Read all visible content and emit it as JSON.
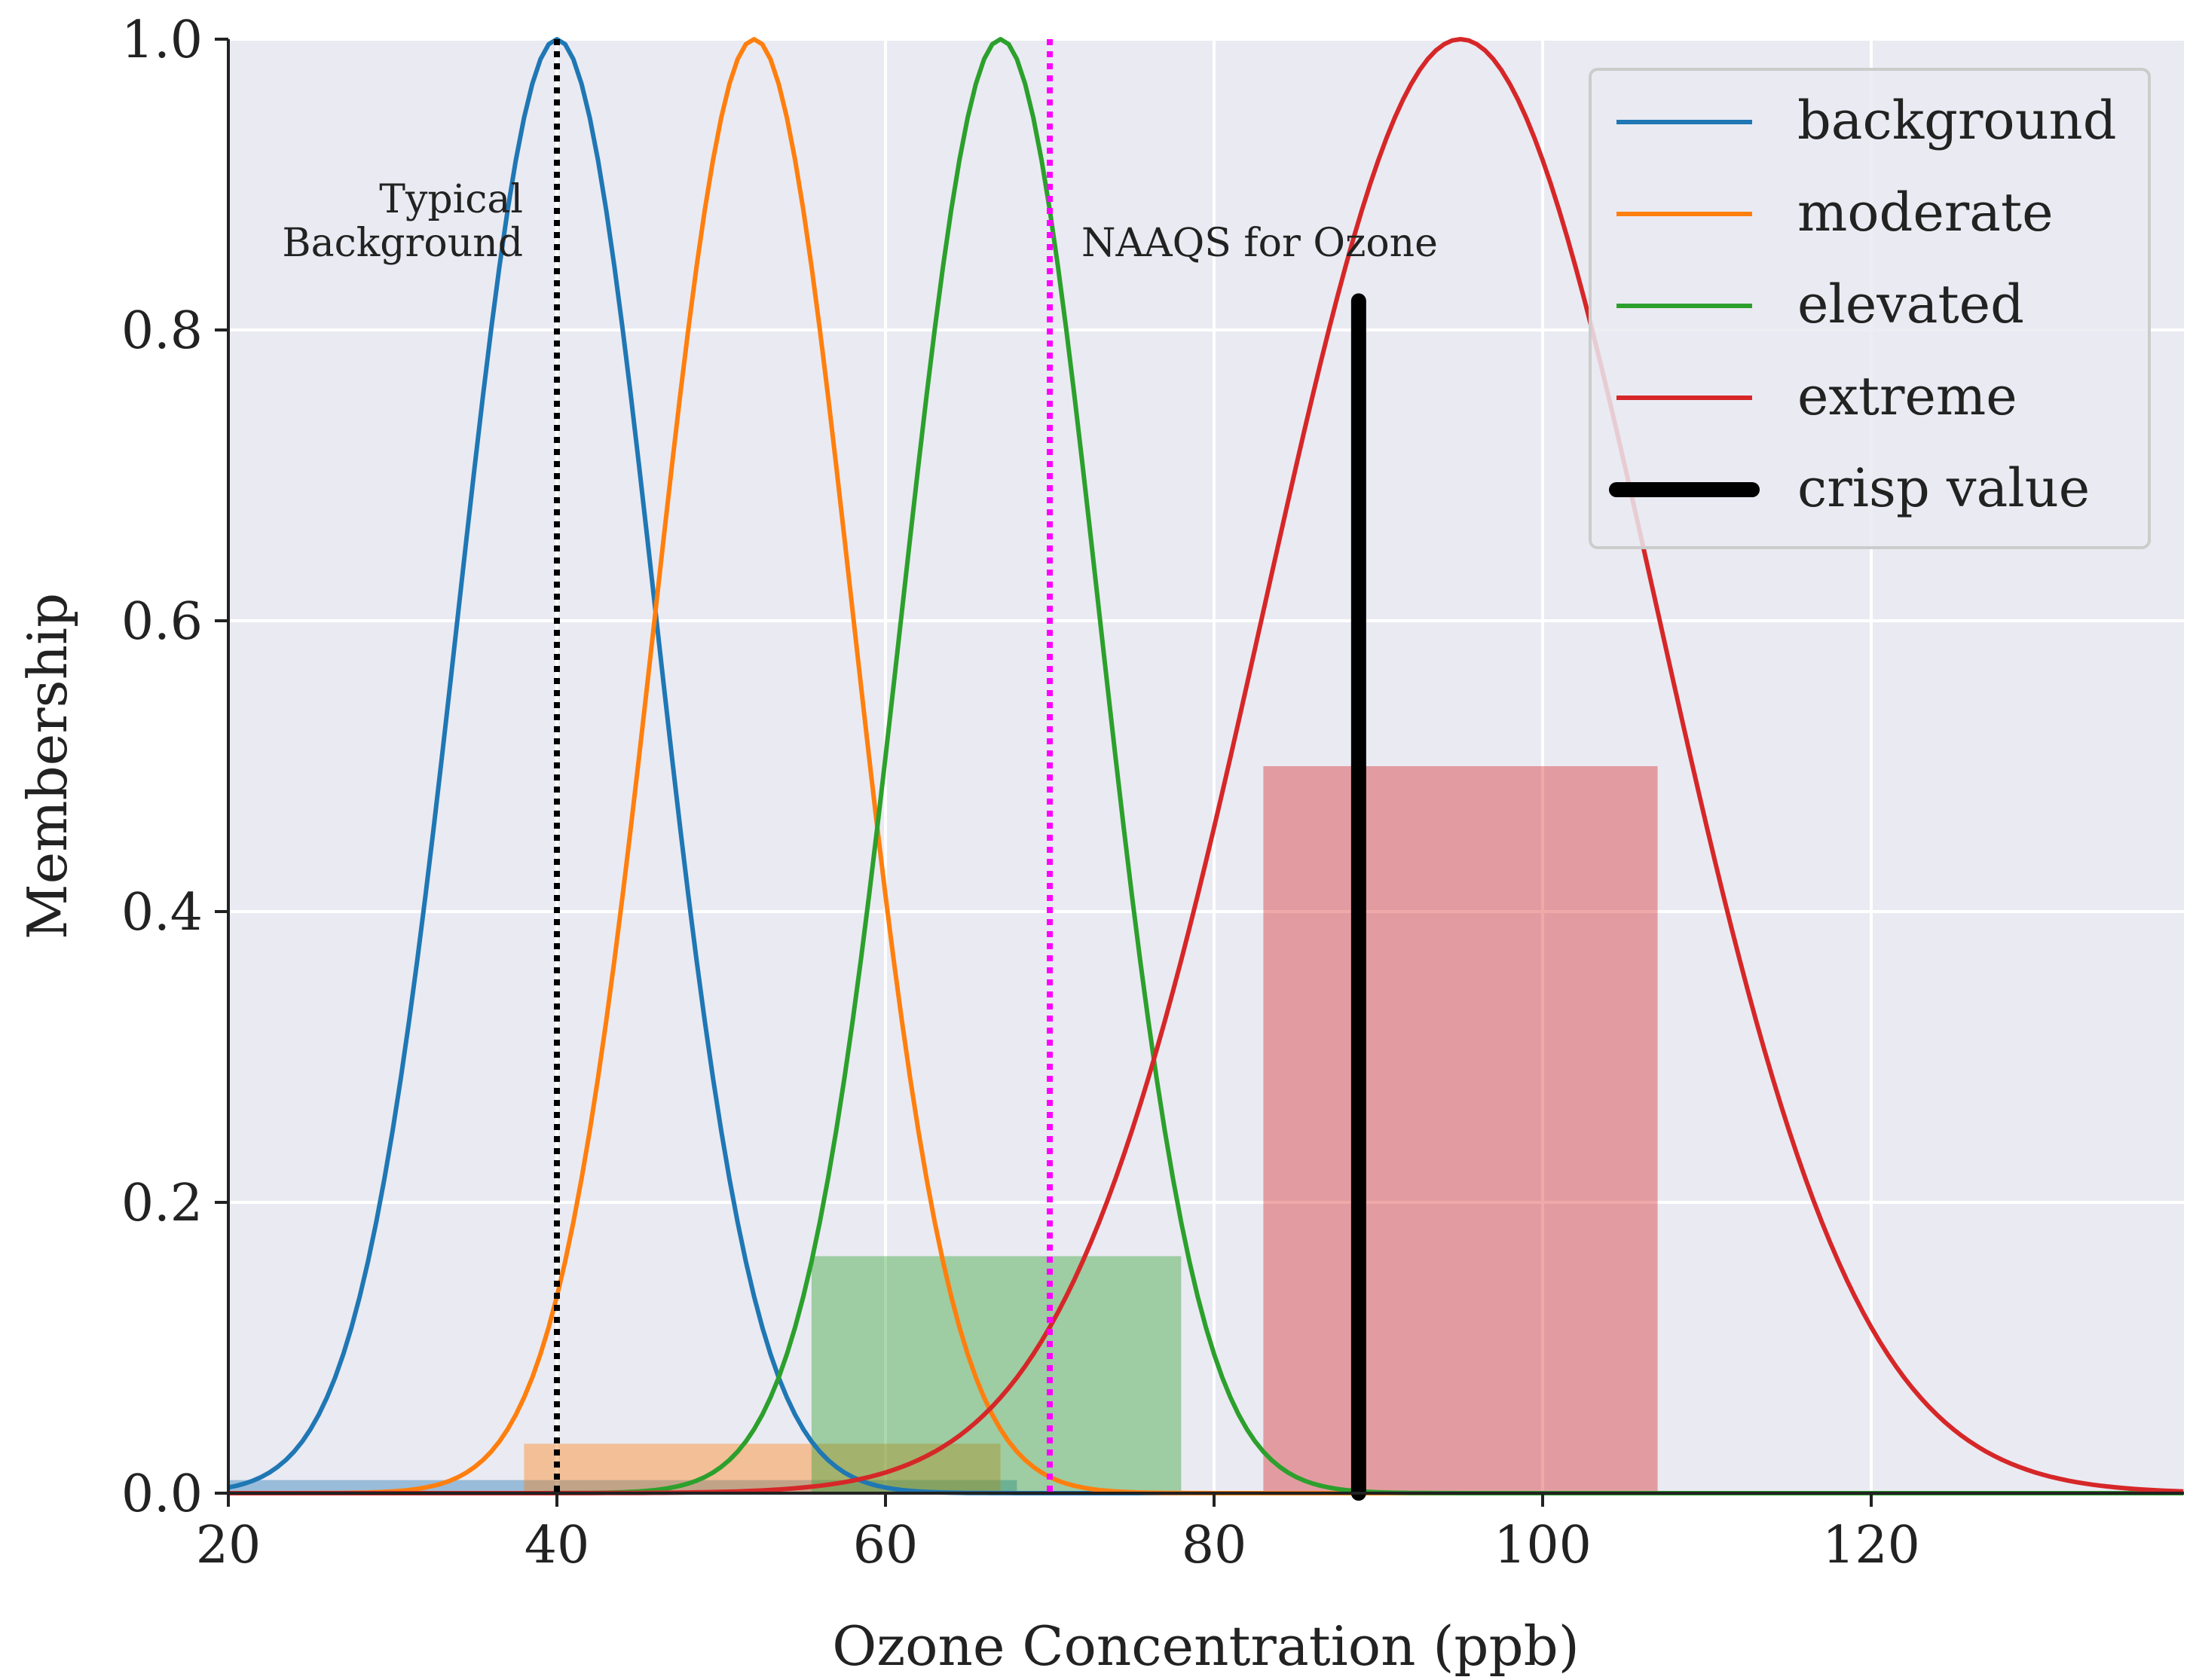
{
  "chart_data": {
    "type": "line",
    "xlabel": "Ozone Concentration (ppb)",
    "ylabel": "Membership",
    "xlim": [
      20,
      139
    ],
    "ylim": [
      0,
      1.0
    ],
    "x_ticks": [
      20,
      40,
      60,
      80,
      100,
      120
    ],
    "y_ticks": [
      0.0,
      0.2,
      0.4,
      0.6,
      0.8,
      1.0
    ],
    "x_tick_labels": [
      "20",
      "40",
      "60",
      "80",
      "100",
      "120"
    ],
    "y_tick_labels": [
      "0.0",
      "0.2",
      "0.4",
      "0.6",
      "0.8",
      "1.0"
    ],
    "grid": true,
    "legend_position": "top-right",
    "series": [
      {
        "name": "background",
        "color": "#1f77b4",
        "shape": "gaussian",
        "center": 40,
        "sigma": 6,
        "fill_level": 0.009,
        "fill_range": [
          20,
          68
        ]
      },
      {
        "name": "moderate",
        "color": "#ff7f0e",
        "shape": "gaussian",
        "center": 52,
        "sigma": 6,
        "fill_level": 0.034,
        "fill_range": [
          38,
          67
        ]
      },
      {
        "name": "elevated",
        "color": "#2ca02c",
        "shape": "gaussian",
        "center": 67,
        "sigma": 6,
        "fill_level": 0.163,
        "fill_range": [
          55.5,
          78
        ]
      },
      {
        "name": "extreme",
        "color": "#d62728",
        "shape": "gaussian",
        "center": 95,
        "sigma": 12,
        "fill_level": 0.5,
        "fill_range": [
          83,
          107
        ]
      }
    ],
    "crisp_value": {
      "name": "crisp value",
      "x": 88.8,
      "y": 0.82,
      "color": "#000000"
    },
    "reference_lines": [
      {
        "x": 40,
        "color": "#000000",
        "style": "dotted",
        "label": [
          "Typical",
          "Background"
        ]
      },
      {
        "x": 70,
        "color": "#ff00ff",
        "style": "dotted",
        "label": [
          "NAAQS for Ozone"
        ]
      }
    ]
  }
}
